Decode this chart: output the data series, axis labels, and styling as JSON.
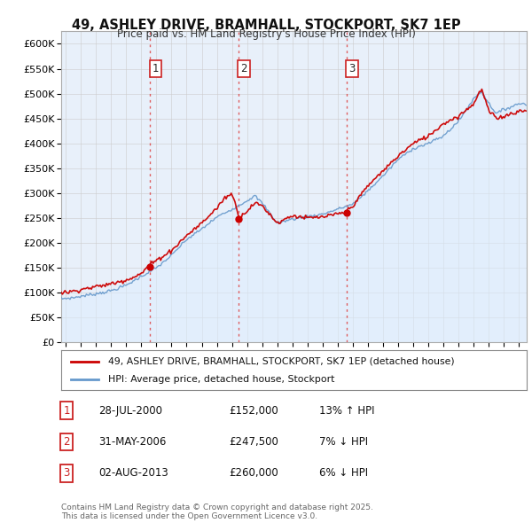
{
  "title": "49, ASHLEY DRIVE, BRAMHALL, STOCKPORT, SK7 1EP",
  "subtitle": "Price paid vs. HM Land Registry's House Price Index (HPI)",
  "ylim": [
    0,
    625000
  ],
  "yticks": [
    0,
    50000,
    100000,
    150000,
    200000,
    250000,
    300000,
    350000,
    400000,
    450000,
    500000,
    550000,
    600000
  ],
  "xlim_start": 1994.7,
  "xlim_end": 2025.5,
  "legend_line1": "49, ASHLEY DRIVE, BRAMHALL, STOCKPORT, SK7 1EP (detached house)",
  "legend_line2": "HPI: Average price, detached house, Stockport",
  "line_color_sale": "#cc0000",
  "line_color_hpi": "#6699cc",
  "fill_color_hpi": "#ddeeff",
  "transactions": [
    {
      "num": 1,
      "date_x": 2000.58,
      "price": 152000,
      "label": "1",
      "date_str": "28-JUL-2000",
      "price_str": "£152,000",
      "pct": "13%",
      "dir": "↑",
      "rel": "HPI"
    },
    {
      "num": 2,
      "date_x": 2006.42,
      "price": 247500,
      "label": "2",
      "date_str": "31-MAY-2006",
      "price_str": "£247,500",
      "pct": "7%",
      "dir": "↓",
      "rel": "HPI"
    },
    {
      "num": 3,
      "date_x": 2013.58,
      "price": 260000,
      "label": "3",
      "date_str": "02-AUG-2013",
      "price_str": "£260,000",
      "pct": "6%",
      "dir": "↓",
      "rel": "HPI"
    }
  ],
  "vline_color": "#dd4444",
  "footnote": "Contains HM Land Registry data © Crown copyright and database right 2025.\nThis data is licensed under the Open Government Licence v3.0.",
  "background_color": "#ffffff",
  "grid_color": "#cccccc",
  "hpi_nodes_t": [
    1994.7,
    1995.5,
    1996,
    1997,
    1998,
    1999,
    2000,
    2001,
    2002,
    2003,
    2004,
    2005,
    2006,
    2007,
    2007.5,
    2008,
    2009,
    2010,
    2011,
    2012,
    2013,
    2014,
    2015,
    2016,
    2017,
    2018,
    2019,
    2020,
    2021,
    2022,
    2022.5,
    2023,
    2023.5,
    2024,
    2025
  ],
  "hpi_nodes_v": [
    88000,
    90000,
    93000,
    98000,
    104000,
    115000,
    133000,
    150000,
    175000,
    207000,
    228000,
    252000,
    268000,
    285000,
    295000,
    280000,
    240000,
    248000,
    253000,
    258000,
    268000,
    278000,
    305000,
    335000,
    368000,
    390000,
    400000,
    415000,
    445000,
    490000,
    505000,
    480000,
    460000,
    468000,
    480000
  ],
  "sale_nodes_t": [
    1994.7,
    1995.5,
    1996,
    1997,
    1998,
    1999,
    2000,
    2000.5,
    2001,
    2002,
    2003,
    2004,
    2005,
    2005.5,
    2006,
    2006.5,
    2007,
    2007.5,
    2008,
    2009,
    2009.5,
    2010,
    2011,
    2012,
    2013,
    2013.5,
    2014,
    2015,
    2016,
    2017,
    2018,
    2019,
    2020,
    2021,
    2022,
    2022.5,
    2023,
    2023.5,
    2024,
    2025
  ],
  "sale_nodes_v": [
    100000,
    103000,
    107000,
    112000,
    118000,
    126000,
    138000,
    155000,
    165000,
    185000,
    215000,
    240000,
    270000,
    290000,
    300000,
    250000,
    265000,
    280000,
    275000,
    240000,
    248000,
    255000,
    250000,
    252000,
    258000,
    262000,
    275000,
    315000,
    345000,
    375000,
    400000,
    415000,
    440000,
    455000,
    480000,
    510000,
    465000,
    450000,
    455000,
    465000
  ]
}
